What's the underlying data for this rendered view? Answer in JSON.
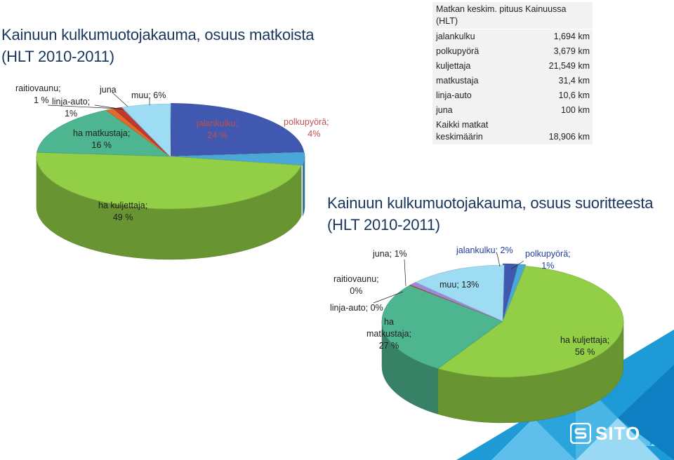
{
  "charts": {
    "chart1": {
      "title_line1": "Kainuun kulkumuotojakauma, osuus matkoista",
      "title_line2": "(HLT 2010-2011)"
    },
    "chart2": {
      "title_line1": "Kainuun kulkumuotojakauma, osuus suoritteesta",
      "title_line2": "(HLT 2010-2011)"
    }
  },
  "chart_data": [
    {
      "type": "pie",
      "title": "Kainuun kulkumuotojakauma, osuus matkoista (HLT 2010-2011)",
      "style": "3d-exploded",
      "slices": [
        {
          "label": "jalankulku",
          "value": 24,
          "color": "#4158b0"
        },
        {
          "label": "polkupyörä",
          "value": 4,
          "color": "#4aa8d8"
        },
        {
          "label": "ha kuljettaja",
          "value": 49,
          "color": "#92ce46"
        },
        {
          "label": "ha matkustaja",
          "value": 16,
          "color": "#4db58f"
        },
        {
          "label": "linja-auto",
          "value": 1,
          "color": "#e06b2c"
        },
        {
          "label": "raitiovaunu",
          "value": 1,
          "color": "#c0392b"
        },
        {
          "label": "juna",
          "value": 0,
          "color": "#9c8ad6"
        },
        {
          "label": "muu",
          "value": 6,
          "color": "#9ddcf2"
        }
      ],
      "data_labels": {
        "jalankulku": [
          "jalankulku;",
          "24 %"
        ],
        "polkupyora": [
          "polkupyörä;",
          "4%"
        ],
        "kuljettaja": [
          "ha kuljettaja;",
          "49 %"
        ],
        "matkustaja": [
          "ha matkustaja;",
          "16 %"
        ],
        "linja": [
          "linja-auto;",
          "1%"
        ],
        "raitio": [
          "raitiovaunu;",
          "1 %"
        ],
        "juna": [
          "juna"
        ],
        "muu": [
          "muu; 6%"
        ]
      }
    },
    {
      "type": "pie",
      "title": "Kainuun kulkumuotojakauma, osuus suoritteesta (HLT 2010-2011)",
      "style": "3d-exploded",
      "slices": [
        {
          "label": "jalankulku",
          "value": 2,
          "color": "#4158b0"
        },
        {
          "label": "polkupyörä",
          "value": 1,
          "color": "#4aa8d8"
        },
        {
          "label": "ha kuljettaja",
          "value": 56,
          "color": "#92ce46"
        },
        {
          "label": "ha matkustaja",
          "value": 27,
          "color": "#4db58f"
        },
        {
          "label": "linja-auto",
          "value": 0,
          "color": "#e06b2c"
        },
        {
          "label": "raitiovaunu",
          "value": 0,
          "color": "#c0392b"
        },
        {
          "label": "juna",
          "value": 1,
          "color": "#9c8ad6"
        },
        {
          "label": "muu",
          "value": 13,
          "color": "#9ddcf2"
        }
      ],
      "data_labels": {
        "jalankulku": [
          "jalankulku; 2%"
        ],
        "polkupyora": [
          "polkupyörä;",
          "1%"
        ],
        "kuljettaja": [
          "ha kuljettaja;",
          "56 %"
        ],
        "matkustaja": [
          "ha",
          "matkustaja;",
          "27 %"
        ],
        "linja": [
          "linja-auto; 0%"
        ],
        "raitio": [
          "raitiovaunu;",
          "0%"
        ],
        "juna": [
          "juna; 1%"
        ],
        "muu": [
          "muu; 13%"
        ]
      }
    },
    {
      "type": "table",
      "title": "Matkan keskim. pituus Kainuussa (HLT)",
      "rows": [
        {
          "label": "jalankulku",
          "value": "1,694 km"
        },
        {
          "label": "polkupyörä",
          "value": "3,679 km"
        },
        {
          "label": "kuljettaja",
          "value": "21,549 km"
        },
        {
          "label": "matkustaja",
          "value": "31,4 km"
        },
        {
          "label": "linja-auto",
          "value": "10,6 km"
        },
        {
          "label": "juna",
          "value": "100 km"
        },
        {
          "label": "Kaikki matkat keskimäärin",
          "label_lines": [
            "Kaikki matkat",
            "keskimäärin"
          ],
          "value": "18,906 km"
        }
      ]
    }
  ],
  "brand": {
    "name": "SITO",
    "icon": "sito-s-logo-icon",
    "color": "#1e9bd7"
  }
}
